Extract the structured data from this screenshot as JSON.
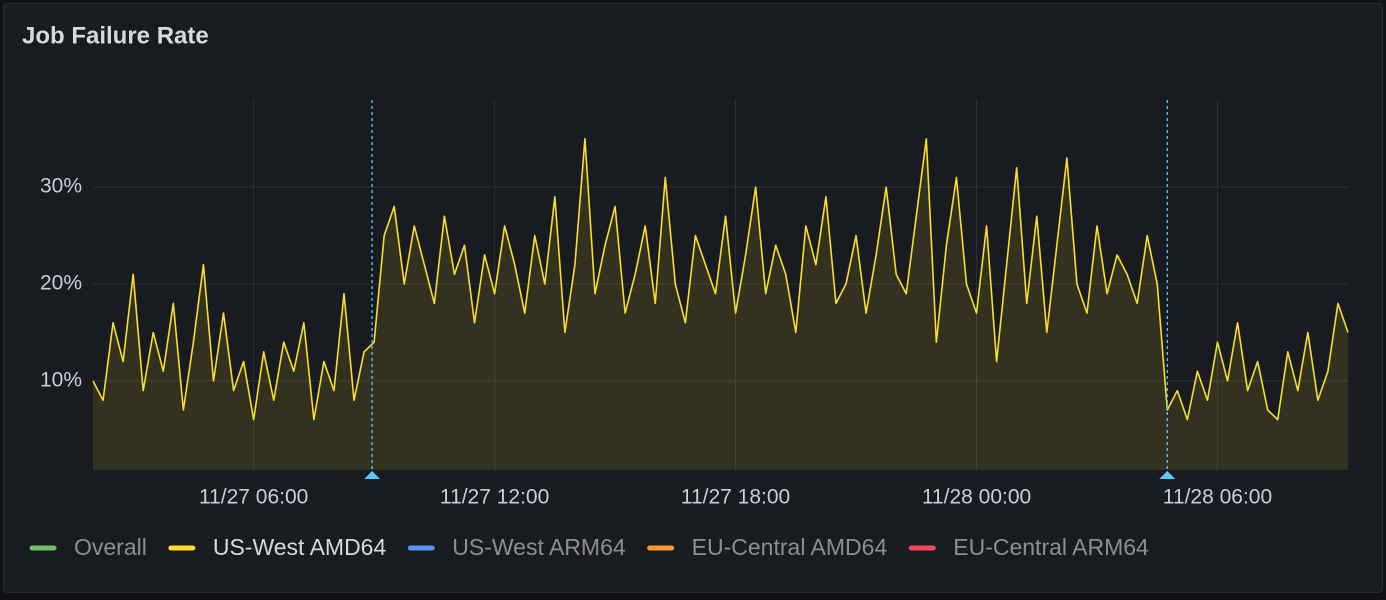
{
  "chart_data": {
    "type": "line",
    "title": "Job Failure Rate",
    "x": [
      "11/27 02:00",
      "11/27 02:15",
      "11/27 02:30",
      "11/27 02:45",
      "11/27 03:00",
      "11/27 03:15",
      "11/27 03:30",
      "11/27 03:45",
      "11/27 04:00",
      "11/27 04:15",
      "11/27 04:30",
      "11/27 04:45",
      "11/27 05:00",
      "11/27 05:15",
      "11/27 05:30",
      "11/27 05:45",
      "11/27 06:00",
      "11/27 06:15",
      "11/27 06:30",
      "11/27 06:45",
      "11/27 07:00",
      "11/27 07:15",
      "11/27 07:30",
      "11/27 07:45",
      "11/27 08:00",
      "11/27 08:15",
      "11/27 08:30",
      "11/27 08:45",
      "11/27 09:00",
      "11/27 09:15",
      "11/27 09:30",
      "11/27 09:45",
      "11/27 10:00",
      "11/27 10:15",
      "11/27 10:30",
      "11/27 10:45",
      "11/27 11:00",
      "11/27 11:15",
      "11/27 11:30",
      "11/27 11:45",
      "11/27 12:00",
      "11/27 12:15",
      "11/27 12:30",
      "11/27 12:45",
      "11/27 13:00",
      "11/27 13:15",
      "11/27 13:30",
      "11/27 13:45",
      "11/27 14:00",
      "11/27 14:15",
      "11/27 14:30",
      "11/27 14:45",
      "11/27 15:00",
      "11/27 15:15",
      "11/27 15:30",
      "11/27 15:45",
      "11/27 16:00",
      "11/27 16:15",
      "11/27 16:30",
      "11/27 16:45",
      "11/27 17:00",
      "11/27 17:15",
      "11/27 17:30",
      "11/27 17:45",
      "11/27 18:00",
      "11/27 18:15",
      "11/27 18:30",
      "11/27 18:45",
      "11/27 19:00",
      "11/27 19:15",
      "11/27 19:30",
      "11/27 19:45",
      "11/27 20:00",
      "11/27 20:15",
      "11/27 20:30",
      "11/27 20:45",
      "11/27 21:00",
      "11/27 21:15",
      "11/27 21:30",
      "11/27 21:45",
      "11/27 22:00",
      "11/27 22:15",
      "11/27 22:30",
      "11/27 22:45",
      "11/27 23:00",
      "11/27 23:15",
      "11/27 23:30",
      "11/27 23:45",
      "11/28 00:00",
      "11/28 00:15",
      "11/28 00:30",
      "11/28 00:45",
      "11/28 01:00",
      "11/28 01:15",
      "11/28 01:30",
      "11/28 01:45",
      "11/28 02:00",
      "11/28 02:15",
      "11/28 02:30",
      "11/28 02:45",
      "11/28 03:00",
      "11/28 03:15",
      "11/28 03:30",
      "11/28 03:45",
      "11/28 04:00",
      "11/28 04:15",
      "11/28 04:30",
      "11/28 04:45",
      "11/28 05:00",
      "11/28 05:15",
      "11/28 05:30",
      "11/28 05:45",
      "11/28 06:00",
      "11/28 06:15",
      "11/28 06:30",
      "11/28 06:45",
      "11/28 07:00",
      "11/28 07:15",
      "11/28 07:30",
      "11/28 07:45",
      "11/28 08:00",
      "11/28 08:15",
      "11/28 08:30",
      "11/28 08:45",
      "11/28 09:00",
      "11/28 09:15"
    ],
    "series": [
      {
        "name": "Overall",
        "color": "#73bf69",
        "hidden": true
      },
      {
        "name": "US-West AMD64",
        "color": "#fade2a",
        "values": [
          10,
          8,
          16,
          12,
          21,
          9,
          15,
          11,
          18,
          7,
          14,
          22,
          10,
          17,
          9,
          12,
          6,
          13,
          8,
          14,
          11,
          16,
          6,
          12,
          9,
          19,
          8,
          13,
          14,
          25,
          28,
          20,
          26,
          22,
          18,
          27,
          21,
          24,
          16,
          23,
          19,
          26,
          22,
          17,
          25,
          20,
          29,
          15,
          22,
          35,
          19,
          24,
          28,
          17,
          21,
          26,
          18,
          31,
          20,
          16,
          25,
          22,
          19,
          27,
          17,
          23,
          30,
          19,
          24,
          21,
          15,
          26,
          22,
          29,
          18,
          20,
          25,
          17,
          23,
          30,
          21,
          19,
          27,
          35,
          14,
          24,
          31,
          20,
          17,
          26,
          12,
          22,
          32,
          18,
          27,
          15,
          24,
          33,
          20,
          17,
          26,
          19,
          23,
          21,
          18,
          25,
          20,
          7,
          9,
          6,
          11,
          8,
          14,
          10,
          16,
          9,
          12,
          7,
          6,
          13,
          9,
          15,
          8,
          11,
          18,
          15
        ]
      },
      {
        "name": "US-West ARM64",
        "color": "#5794f2",
        "hidden": true
      },
      {
        "name": "EU-Central AMD64",
        "color": "#ff9830",
        "hidden": true
      },
      {
        "name": "EU-Central ARM64",
        "color": "#f2495c",
        "hidden": true
      }
    ],
    "xlim": [
      "11/27 02:00",
      "11/28 09:15"
    ],
    "xticks": [
      "11/27 06:00",
      "11/27 12:00",
      "11/27 18:00",
      "11/28 00:00",
      "11/28 06:00"
    ],
    "ylim": [
      0.8,
      39
    ],
    "yticks": [
      {
        "value": 10,
        "label": "10%"
      },
      {
        "value": 20,
        "label": "20%"
      },
      {
        "value": 30,
        "label": "30%"
      }
    ],
    "annotations": [
      {
        "x": "11/27 08:57",
        "color": "#5ac8fa"
      },
      {
        "x": "11/28 04:45",
        "color": "#5ac8fa"
      }
    ],
    "grid": true
  }
}
